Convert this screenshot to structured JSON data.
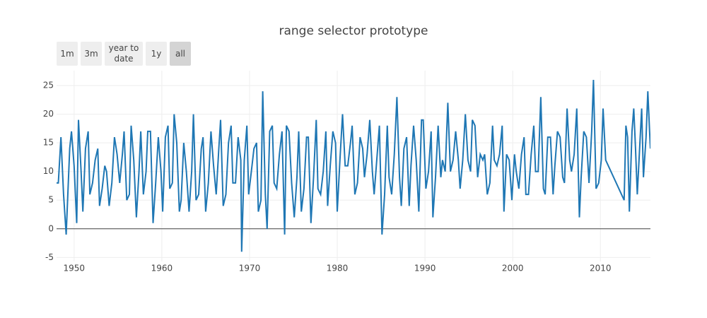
{
  "chart_data": {
    "type": "line",
    "title": "range selector prototype",
    "buttons": [
      "1m",
      "3m",
      "year to date",
      "1y",
      "all"
    ],
    "active_button": 4,
    "xlim": [
      1948.0,
      2015.7
    ],
    "xticks": [
      1950,
      1960,
      1970,
      1980,
      1990,
      2000,
      2010
    ],
    "ylim": [
      -5.7,
      27.6
    ],
    "yticks": [
      -5,
      0,
      5,
      10,
      15,
      20,
      25
    ],
    "grid": true,
    "zero_line": true,
    "series": [
      {
        "color": "#1f77b4",
        "x": [
          1948.0,
          1948.2,
          1948.5,
          1948.8,
          1949.1,
          1949.5,
          1949.7,
          1950.0,
          1950.3,
          1950.5,
          1950.8,
          1951.0,
          1951.3,
          1951.6,
          1951.8,
          1952.1,
          1952.4,
          1952.7,
          1952.9,
          1953.2,
          1953.5,
          1953.7,
          1954.0,
          1954.3,
          1954.6,
          1954.9,
          1955.2,
          1955.5,
          1955.7,
          1956.0,
          1956.3,
          1956.5,
          1956.8,
          1957.1,
          1957.4,
          1957.6,
          1957.9,
          1958.2,
          1958.4,
          1958.7,
          1959.0,
          1959.3,
          1959.6,
          1959.9,
          1960.1,
          1960.4,
          1960.7,
          1960.9,
          1961.2,
          1961.4,
          1961.7,
          1962.0,
          1962.2,
          1962.5,
          1962.8,
          1963.1,
          1963.4,
          1963.6,
          1963.9,
          1964.2,
          1964.5,
          1964.7,
          1965.0,
          1965.3,
          1965.6,
          1965.9,
          1966.2,
          1966.5,
          1966.7,
          1967.0,
          1967.3,
          1967.6,
          1967.9,
          1968.1,
          1968.4,
          1968.7,
          1969.0,
          1969.1,
          1969.4,
          1969.7,
          1969.9,
          1970.2,
          1970.5,
          1970.8,
          1971.0,
          1971.3,
          1971.5,
          1971.8,
          1972.0,
          1972.3,
          1972.6,
          1972.8,
          1973.1,
          1973.4,
          1973.7,
          1974.0,
          1974.2,
          1974.5,
          1974.8,
          1975.1,
          1975.4,
          1975.6,
          1975.9,
          1976.2,
          1976.5,
          1976.7,
          1977.0,
          1977.3,
          1977.6,
          1977.8,
          1978.1,
          1978.4,
          1978.7,
          1978.9,
          1979.2,
          1979.5,
          1979.8,
          1980.0,
          1980.3,
          1980.6,
          1980.9,
          1981.2,
          1981.5,
          1981.7,
          1982.0,
          1982.3,
          1982.6,
          1982.9,
          1983.1,
          1983.4,
          1983.7,
          1984.0,
          1984.2,
          1984.5,
          1984.8,
          1985.1,
          1985.4,
          1985.7,
          1985.9,
          1986.2,
          1986.5,
          1986.8,
          1987.1,
          1987.3,
          1987.6,
          1987.9,
          1988.2,
          1988.4,
          1988.7,
          1989.0,
          1989.3,
          1989.6,
          1989.8,
          1990.1,
          1990.4,
          1990.7,
          1990.9,
          1991.2,
          1991.5,
          1991.8,
          1992.0,
          1992.3,
          1992.6,
          1992.9,
          1993.2,
          1993.5,
          1993.8,
          1994.0,
          1994.3,
          1994.6,
          1994.9,
          1995.2,
          1995.4,
          1995.7,
          1996.0,
          1996.3,
          1996.6,
          1996.8,
          1997.1,
          1997.4,
          1997.7,
          1997.9,
          1998.2,
          1998.5,
          1998.8,
          1999.0,
          1999.3,
          1999.6,
          1999.9,
          2000.2,
          2000.4,
          2000.7,
          2001.0,
          2001.3,
          2001.5,
          2001.8,
          2002.1,
          2002.4,
          2002.6,
          2002.9,
          2003.2,
          2003.5,
          2003.7,
          2004.0,
          2004.3,
          2004.6,
          2004.8,
          2005.1,
          2005.4,
          2005.7,
          2005.9,
          2006.2,
          2006.5,
          2006.7,
          2007.0,
          2007.3,
          2007.6,
          2007.8,
          2008.1,
          2008.4,
          2008.7,
          2009.0,
          2009.2,
          2009.5,
          2009.8,
          2010.1,
          2010.3,
          2010.6,
          2012.7,
          2012.9,
          2013.1,
          2013.3,
          2013.6,
          2013.8,
          2014.0,
          2014.2,
          2014.5,
          2014.7,
          2014.9,
          2015.2,
          2015.4,
          2015.6,
          2015.7
        ],
        "values": [
          8,
          8,
          16,
          6,
          -1,
          14,
          17,
          11,
          1,
          19,
          10,
          3,
          14,
          17,
          6,
          8,
          12,
          14,
          4,
          7,
          11,
          10,
          4,
          8,
          16,
          13,
          8,
          13,
          17,
          5,
          6,
          18,
          12,
          2,
          10,
          17,
          6,
          10,
          17,
          17,
          1,
          8,
          16,
          10,
          3,
          16,
          18,
          7,
          8,
          20,
          15,
          3,
          5,
          15,
          10,
          3,
          10,
          20,
          5,
          6,
          14,
          16,
          3,
          8,
          17,
          11,
          6,
          14,
          19,
          4,
          6,
          15,
          18,
          8,
          8,
          16,
          12,
          -4,
          12,
          18,
          6,
          10,
          14,
          15,
          3,
          5,
          24,
          6,
          0,
          17,
          18,
          8,
          7,
          13,
          17,
          -1,
          18,
          17,
          8,
          2,
          9,
          17,
          3,
          7,
          16,
          16,
          1,
          9,
          19,
          7,
          6,
          10,
          17,
          4,
          11,
          17,
          15,
          3,
          12,
          20,
          11,
          11,
          15,
          18,
          6,
          8,
          16,
          14,
          9,
          13,
          19,
          10,
          6,
          12,
          18,
          -1,
          6,
          18,
          9,
          6,
          13,
          23,
          9,
          4,
          14,
          16,
          4,
          11,
          18,
          12,
          3,
          19,
          19,
          7,
          10,
          17,
          2,
          9,
          18,
          9,
          12,
          10,
          22,
          10,
          12,
          17,
          12,
          7,
          12,
          20,
          12,
          10,
          19,
          18,
          9,
          13,
          12,
          13,
          6,
          8,
          18,
          12,
          11,
          13,
          18,
          3,
          13,
          12,
          5,
          13,
          10,
          7,
          13,
          16,
          6,
          6,
          13,
          18,
          10,
          10,
          23,
          7,
          6,
          16,
          16,
          6,
          11,
          17,
          16,
          9,
          8,
          21,
          12,
          10,
          13,
          21,
          2,
          9,
          17,
          16,
          8,
          17,
          26,
          7,
          8,
          12,
          21,
          12,
          5,
          18,
          16,
          3,
          17,
          21,
          14,
          6,
          15,
          21,
          9,
          16,
          24,
          17,
          14
        ]
      }
    ]
  }
}
